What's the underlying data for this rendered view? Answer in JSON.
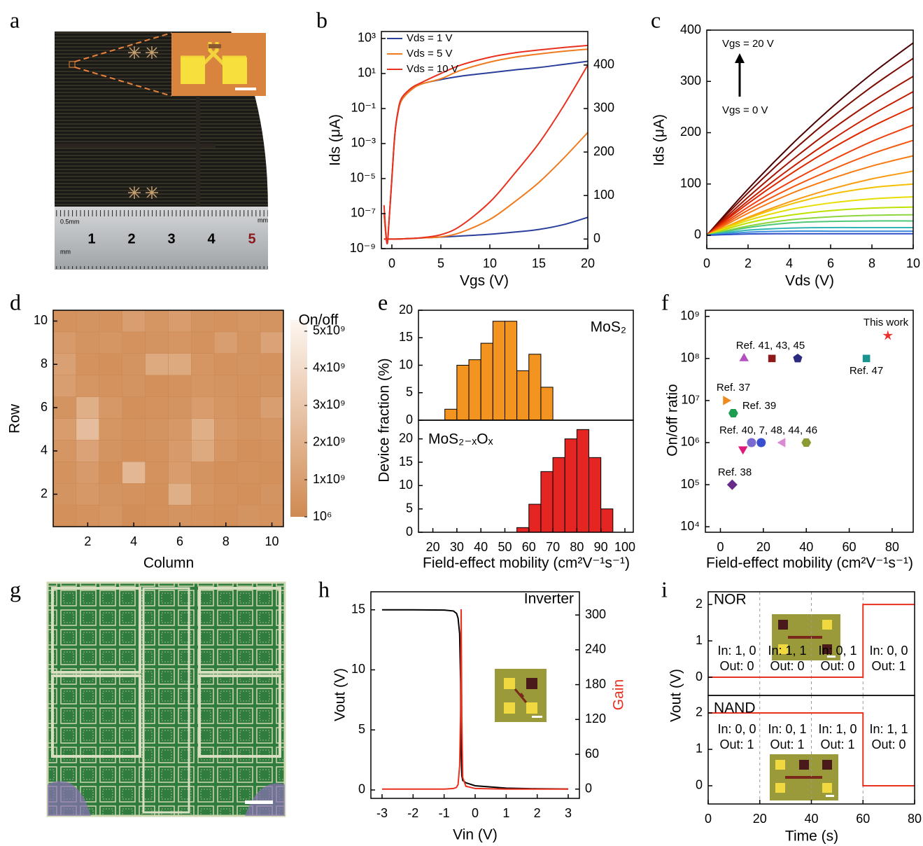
{
  "panel_labels": [
    "a",
    "b",
    "c",
    "d",
    "e",
    "f",
    "g",
    "h",
    "i"
  ],
  "photo_a": {
    "ruler_labels": [
      "0.5mm",
      "mm",
      "mm",
      "1",
      "2",
      "3",
      "4",
      "5"
    ]
  },
  "chart_data": [
    {
      "type": "line",
      "xlabel": "Vgs (V)",
      "ylabel": "Ids (μA)",
      "legend": "upper left",
      "x": [
        -0.8,
        -0.5,
        -0.3,
        0,
        0.3,
        0.6,
        1,
        2,
        3,
        5,
        7,
        10,
        12.5,
        15,
        17.5,
        20
      ],
      "series": [
        {
          "name": "Vds = 1 V",
          "color": "#2a3e9c",
          "values": [
            1e-07,
            2e-09,
            3e-08,
            1e-05,
            0.003,
            0.05,
            0.3,
            1.2,
            2.5,
            4.5,
            7,
            11,
            16,
            22,
            33,
            50
          ]
        },
        {
          "name": "Vds = 5 V",
          "color": "#f07a1e",
          "values": [
            1e-07,
            2e-09,
            3e-08,
            1e-05,
            0.003,
            0.05,
            0.3,
            1.2,
            2.5,
            5,
            15,
            45,
            85,
            130,
            185,
            245
          ]
        },
        {
          "name": "Vds = 10 V",
          "color": "#e8311f",
          "values": [
            3e-07,
            2e-09,
            3e-08,
            1e-05,
            0.003,
            0.06,
            0.4,
            1.5,
            3,
            10,
            30,
            85,
            150,
            220,
            305,
            400
          ]
        }
      ],
      "xlim": [
        -1.07,
        20
      ],
      "xticks": [
        0,
        5,
        10,
        15,
        20
      ],
      "ylog": true,
      "ylim": [
        1e-09,
        2500
      ],
      "yticks": [
        {
          "value": 1e-09,
          "label": "10⁻⁹"
        },
        {
          "value": 1e-07,
          "label": "10⁻⁷"
        },
        {
          "value": 1e-05,
          "label": "10⁻⁵"
        },
        {
          "value": 0.001,
          "label": "10⁻³"
        },
        {
          "value": 0.1,
          "label": "10⁻¹"
        },
        {
          "value": 10,
          "label": "10¹"
        },
        {
          "value": 1000,
          "label": "10³"
        }
      ],
      "y2lim": [
        -22,
        477
      ],
      "y2ticks": [
        0,
        100,
        200,
        300,
        400
      ]
    },
    {
      "type": "line",
      "xlabel": "Vds (V)",
      "ylabel": "Ids (μA)",
      "annotations": [
        "Vgs = 20 V",
        "Vgs = 0 V"
      ],
      "x": [
        0,
        2,
        4,
        6,
        8,
        10
      ],
      "series": [
        {
          "color": "#4d0000",
          "values": [
            0,
            90,
            172.5,
            247.5,
            315,
            375
          ]
        },
        {
          "color": "#7a0a00",
          "values": [
            0,
            82.8,
            158.7,
            227.7,
            289.8,
            345
          ]
        },
        {
          "color": "#a31400",
          "values": [
            0,
            74.4,
            142.6,
            204.6,
            260.4,
            310
          ]
        },
        {
          "color": "#c81e00",
          "values": [
            0,
            67.2,
            128.8,
            184.8,
            235.2,
            280
          ]
        },
        {
          "color": "#e02800",
          "values": [
            0,
            62,
            118,
            168,
            212,
            250
          ]
        },
        {
          "color": "#f04010",
          "values": [
            0,
            55,
            103,
            145,
            183,
            215
          ]
        },
        {
          "color": "#f55a10",
          "values": [
            0,
            49,
            91,
            127,
            159,
            185
          ]
        },
        {
          "color": "#f87a10",
          "values": [
            0,
            43,
            80,
            110,
            135,
            155
          ]
        },
        {
          "color": "#fa9a10",
          "values": [
            0,
            35,
            65,
            90,
            110,
            125
          ]
        },
        {
          "color": "#f5c000",
          "values": [
            0,
            33,
            60,
            80,
            93,
            100
          ]
        },
        {
          "color": "#e8dc00",
          "values": [
            0,
            29,
            50,
            63,
            71,
            75
          ]
        },
        {
          "color": "#c0e000",
          "values": [
            0,
            24,
            39,
            48,
            53,
            55
          ]
        },
        {
          "color": "#8cd63c",
          "values": [
            0,
            18,
            30,
            36,
            39,
            40
          ]
        },
        {
          "color": "#50c878",
          "values": [
            0,
            15,
            24,
            27,
            28,
            28
          ]
        },
        {
          "color": "#30b4b4",
          "values": [
            0,
            10,
            14,
            15,
            15,
            15
          ]
        },
        {
          "color": "#3c8cdc",
          "values": [
            0,
            6,
            8,
            8,
            8,
            8
          ]
        },
        {
          "color": "#3050c8",
          "values": [
            0,
            2.5,
            3,
            3,
            3,
            3
          ]
        }
      ],
      "xlim": [
        0,
        10
      ],
      "xticks": [
        0,
        2,
        4,
        6,
        8,
        10
      ],
      "ylim": [
        -26,
        400
      ],
      "yticks": [
        0,
        100,
        200,
        300,
        400
      ]
    },
    {
      "type": "heatmap",
      "xlabel": "Column",
      "ylabel": "Row",
      "colorbar_label": "On/off",
      "z": [
        [
          300000000.0,
          400000000.0,
          600000000.0,
          200000000.0,
          300000000.0,
          500000000.0,
          400000000.0,
          300000000.0,
          500000000.0,
          400000000.0
        ],
        [
          500000000.0,
          700000000.0,
          500000000.0,
          400000000.0,
          300000000.0,
          1800000000.0,
          600000000.0,
          400000000.0,
          300000000.0,
          500000000.0
        ],
        [
          400000000.0,
          800000000.0,
          300000000.0,
          2200000000.0,
          400000000.0,
          900000000.0,
          500000000.0,
          300000000.0,
          400000000.0,
          300000000.0
        ],
        [
          600000000.0,
          1200000000.0,
          500000000.0,
          300000000.0,
          400000000.0,
          800000000.0,
          1500000000.0,
          600000000.0,
          300000000.0,
          400000000.0
        ],
        [
          900000000.0,
          2500000000.0,
          600000000.0,
          400000000.0,
          500000000.0,
          700000000.0,
          1800000000.0,
          700000000.0,
          500000000.0,
          600000000.0
        ],
        [
          500000000.0,
          1800000000.0,
          700000000.0,
          300000000.0,
          400000000.0,
          500000000.0,
          900000000.0,
          600000000.0,
          400000000.0,
          1000000000.0
        ],
        [
          1000000000.0,
          600000000.0,
          400000000.0,
          500000000.0,
          300000000.0,
          400000000.0,
          600000000.0,
          500000000.0,
          400000000.0,
          500000000.0
        ],
        [
          1100000000.0,
          400000000.0,
          300000000.0,
          500000000.0,
          1500000000.0,
          1500000000.0,
          600000000.0,
          400000000.0,
          500000000.0,
          400000000.0
        ],
        [
          800000000.0,
          500000000.0,
          600000000.0,
          400000000.0,
          500000000.0,
          600000000.0,
          400000000.0,
          1000000000.0,
          500000000.0,
          1200000000.0
        ],
        [
          400000000.0,
          500000000.0,
          400000000.0,
          1000000000.0,
          600000000.0,
          900000000.0,
          500000000.0,
          400000000.0,
          600000000.0,
          500000000.0
        ]
      ],
      "xlim": [
        0.5,
        10.5
      ],
      "ylim": [
        0.5,
        10.5
      ],
      "xticks": [
        2,
        4,
        6,
        8,
        10
      ],
      "yticks": [
        2,
        4,
        6,
        8,
        10
      ],
      "clim": [
        1000000,
        5300000000
      ],
      "colors": [
        "#d08a52",
        "#fdf6f0"
      ],
      "cticks": [
        {
          "value": 1000000,
          "label": "10⁶"
        },
        {
          "value": 1000000000,
          "label": "1x10⁹"
        },
        {
          "value": 2000000000,
          "label": "2x10⁹"
        },
        {
          "value": 3000000000,
          "label": "3x10⁹"
        },
        {
          "value": 4000000000,
          "label": "4x10⁹"
        },
        {
          "value": 5000000000,
          "label": "5x10⁹"
        }
      ]
    },
    {
      "type": "histogram",
      "label": "MoS₂",
      "ylabel": "Device fraction (%)",
      "bins": [
        25,
        30,
        35,
        40,
        45,
        50,
        55,
        60,
        65,
        70
      ],
      "counts": [
        2,
        10,
        11,
        14,
        18,
        18,
        9,
        12,
        6
      ],
      "color": "#f39320",
      "xlim": [
        14,
        103.5
      ],
      "ylim": [
        0,
        20
      ],
      "yticks": [
        0,
        5,
        10,
        15,
        20
      ]
    },
    {
      "type": "histogram",
      "label": "MoS₂₋ₓOₓ",
      "xlabel": "Field-effect mobility (cm²V⁻¹s⁻¹)",
      "bins": [
        55,
        60,
        65,
        70,
        75,
        80,
        85,
        90,
        95
      ],
      "counts": [
        1,
        6,
        13,
        16,
        20,
        22,
        16,
        5
      ],
      "color": "#e52521",
      "xlim": [
        14,
        103.5
      ],
      "xticks": [
        20,
        30,
        40,
        50,
        60,
        70,
        80,
        90,
        100
      ],
      "ylim": [
        0,
        24
      ],
      "yticks": [
        0,
        5,
        10,
        15,
        20
      ]
    },
    {
      "type": "scatter",
      "xlabel": "Field-effect mobility (cm²V⁻¹s⁻¹)",
      "ylabel": "On/off ratio",
      "points": [
        {
          "x": 78,
          "y": 350000000,
          "marker": "star",
          "color": "#e8312a"
        },
        {
          "x": 68,
          "y": 100000000,
          "marker": "square",
          "color": "#1a9490"
        },
        {
          "x": 11,
          "y": 100000000,
          "marker": "triangle-up",
          "color": "#b44fbf"
        },
        {
          "x": 24,
          "y": 100000000,
          "marker": "square",
          "color": "#8c1a1a"
        },
        {
          "x": 36,
          "y": 100000000,
          "marker": "pentagon",
          "color": "#2a2a80"
        },
        {
          "x": 2.5,
          "y": 10000000,
          "marker": "triangle-right",
          "color": "#f08a1e"
        },
        {
          "x": 6,
          "y": 5000000,
          "marker": "hexagon",
          "color": "#1e9c50"
        },
        {
          "x": 10.5,
          "y": 700000,
          "marker": "triangle-down",
          "color": "#e0197d"
        },
        {
          "x": 14.5,
          "y": 1000000,
          "marker": "circle",
          "color": "#7a6ad0"
        },
        {
          "x": 19,
          "y": 1000000,
          "marker": "circle",
          "color": "#3a4ed0"
        },
        {
          "x": 29,
          "y": 1000000,
          "marker": "triangle-left",
          "color": "#d98ad0"
        },
        {
          "x": 40,
          "y": 1000000,
          "marker": "hexagon",
          "color": "#8c9a30"
        },
        {
          "x": 5.5,
          "y": 100000,
          "marker": "diamond",
          "color": "#6a2a8a"
        }
      ],
      "annotations": [
        "This work",
        "Ref. 41, 43, 45",
        "Ref. 47",
        "Ref. 37",
        "Ref. 39",
        "Ref. 40, 7, 48, 44, 46",
        "Ref. 38"
      ],
      "xlim": [
        -7,
        89.8
      ],
      "xticks": [
        0,
        20,
        40,
        60,
        80
      ],
      "ylog": true,
      "ylim": [
        7400,
        1400000000
      ],
      "yticks": [
        {
          "value": 10000,
          "label": "10⁴"
        },
        {
          "value": 100000,
          "label": "10⁵"
        },
        {
          "value": 1000000,
          "label": "10⁶"
        },
        {
          "value": 10000000,
          "label": "10⁷"
        },
        {
          "value": 100000000,
          "label": "10⁸"
        },
        {
          "value": 1000000000,
          "label": "10⁹"
        }
      ]
    },
    {
      "type": "line",
      "title": "Inverter",
      "xlabel": "Vin (V)",
      "ylabel": "Vout (V)",
      "y2label": "Gain",
      "x": [
        -3,
        -2,
        -1,
        -0.7,
        -0.6,
        -0.55,
        -0.5,
        -0.47,
        -0.45,
        -0.43,
        -0.4,
        -0.3,
        0,
        1,
        2,
        3
      ],
      "series": [
        {
          "color": "#000000",
          "values": [
            15,
            15,
            14.98,
            14.9,
            14.7,
            14.3,
            13,
            9,
            3,
            1.2,
            0.8,
            0.6,
            0.35,
            0.15,
            0.1,
            0.08
          ]
        },
        {
          "color": "#e8311f",
          "axis": "y2",
          "values": [
            0,
            0,
            0,
            1,
            3,
            8,
            40,
            130,
            310,
            120,
            20,
            5,
            1,
            0,
            0,
            0
          ]
        }
      ],
      "xlim": [
        -3.36,
        3.36
      ],
      "xticks": [
        -3,
        -2,
        -1,
        0,
        1,
        2,
        3
      ],
      "ylim": [
        -0.7,
        16.5
      ],
      "yticks": [
        0,
        5,
        10,
        15
      ],
      "y2lim": [
        -16,
        340
      ],
      "y2ticks": [
        0,
        60,
        120,
        180,
        240,
        300
      ]
    },
    {
      "type": "line",
      "label": "NOR",
      "ylabel": "Vout (V)",
      "x": [
        0,
        60,
        60,
        80
      ],
      "series": [
        {
          "color": "#e8311f",
          "values": [
            0,
            0,
            2,
            2
          ]
        }
      ],
      "xlim": [
        0,
        80
      ],
      "ylim": [
        -0.5,
        2.35
      ],
      "yticks": [
        0,
        1,
        2
      ],
      "dividers": [
        20,
        40,
        60
      ],
      "annotations": [
        "In: 1, 0",
        "Out: 0",
        "In: 1, 1",
        "Out: 0",
        "In: 0, 1",
        "Out: 0",
        "In: 0, 0",
        "Out: 1"
      ]
    },
    {
      "type": "line",
      "label": "NAND",
      "xlabel": "Time (s)",
      "x": [
        0,
        60,
        60,
        80
      ],
      "series": [
        {
          "color": "#e8311f",
          "values": [
            2,
            2,
            0,
            0
          ]
        }
      ],
      "xlim": [
        0,
        80
      ],
      "xticks": [
        0,
        20,
        40,
        60,
        80
      ],
      "ylim": [
        -0.5,
        2.48
      ],
      "yticks": [
        0,
        1,
        2
      ],
      "dividers": [
        20,
        40,
        60
      ],
      "annotations": [
        "In: 0, 0",
        "Out: 1",
        "In: 0, 1",
        "Out: 1",
        "In: 1, 0",
        "Out: 1",
        "In: 1, 1",
        "Out: 0"
      ]
    }
  ]
}
